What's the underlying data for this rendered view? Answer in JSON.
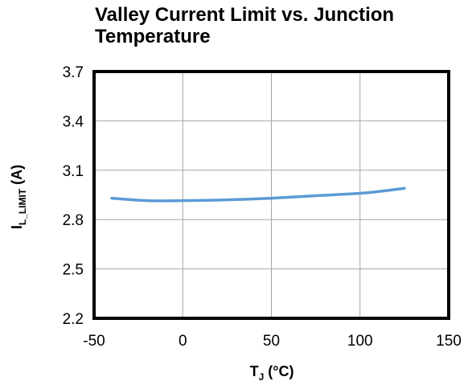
{
  "chart_data": {
    "type": "line",
    "title_line1": "Valley Current Limit vs. Junction",
    "title_line2": "Temperature",
    "xlabel_main": "T",
    "xlabel_sub": "J",
    "xlabel_unit": " (°C)",
    "ylabel_main": "I",
    "ylabel_sub": "L_LIMIT",
    "ylabel_unit": " (A)",
    "xlim": [
      -50,
      150
    ],
    "ylim": [
      2.2,
      3.7
    ],
    "x_ticks": [
      "-50",
      "0",
      "50",
      "100",
      "150"
    ],
    "y_ticks": [
      "2.2",
      "2.5",
      "2.8",
      "3.1",
      "3.4",
      "3.7"
    ],
    "grid": true,
    "series": [
      {
        "color": "#5b9bd5",
        "points": [
          [
            -40,
            2.93
          ],
          [
            -20,
            2.915
          ],
          [
            0,
            2.915
          ],
          [
            25,
            2.92
          ],
          [
            50,
            2.93
          ],
          [
            75,
            2.945
          ],
          [
            100,
            2.96
          ],
          [
            110,
            2.97
          ],
          [
            125,
            2.99
          ]
        ]
      }
    ]
  }
}
